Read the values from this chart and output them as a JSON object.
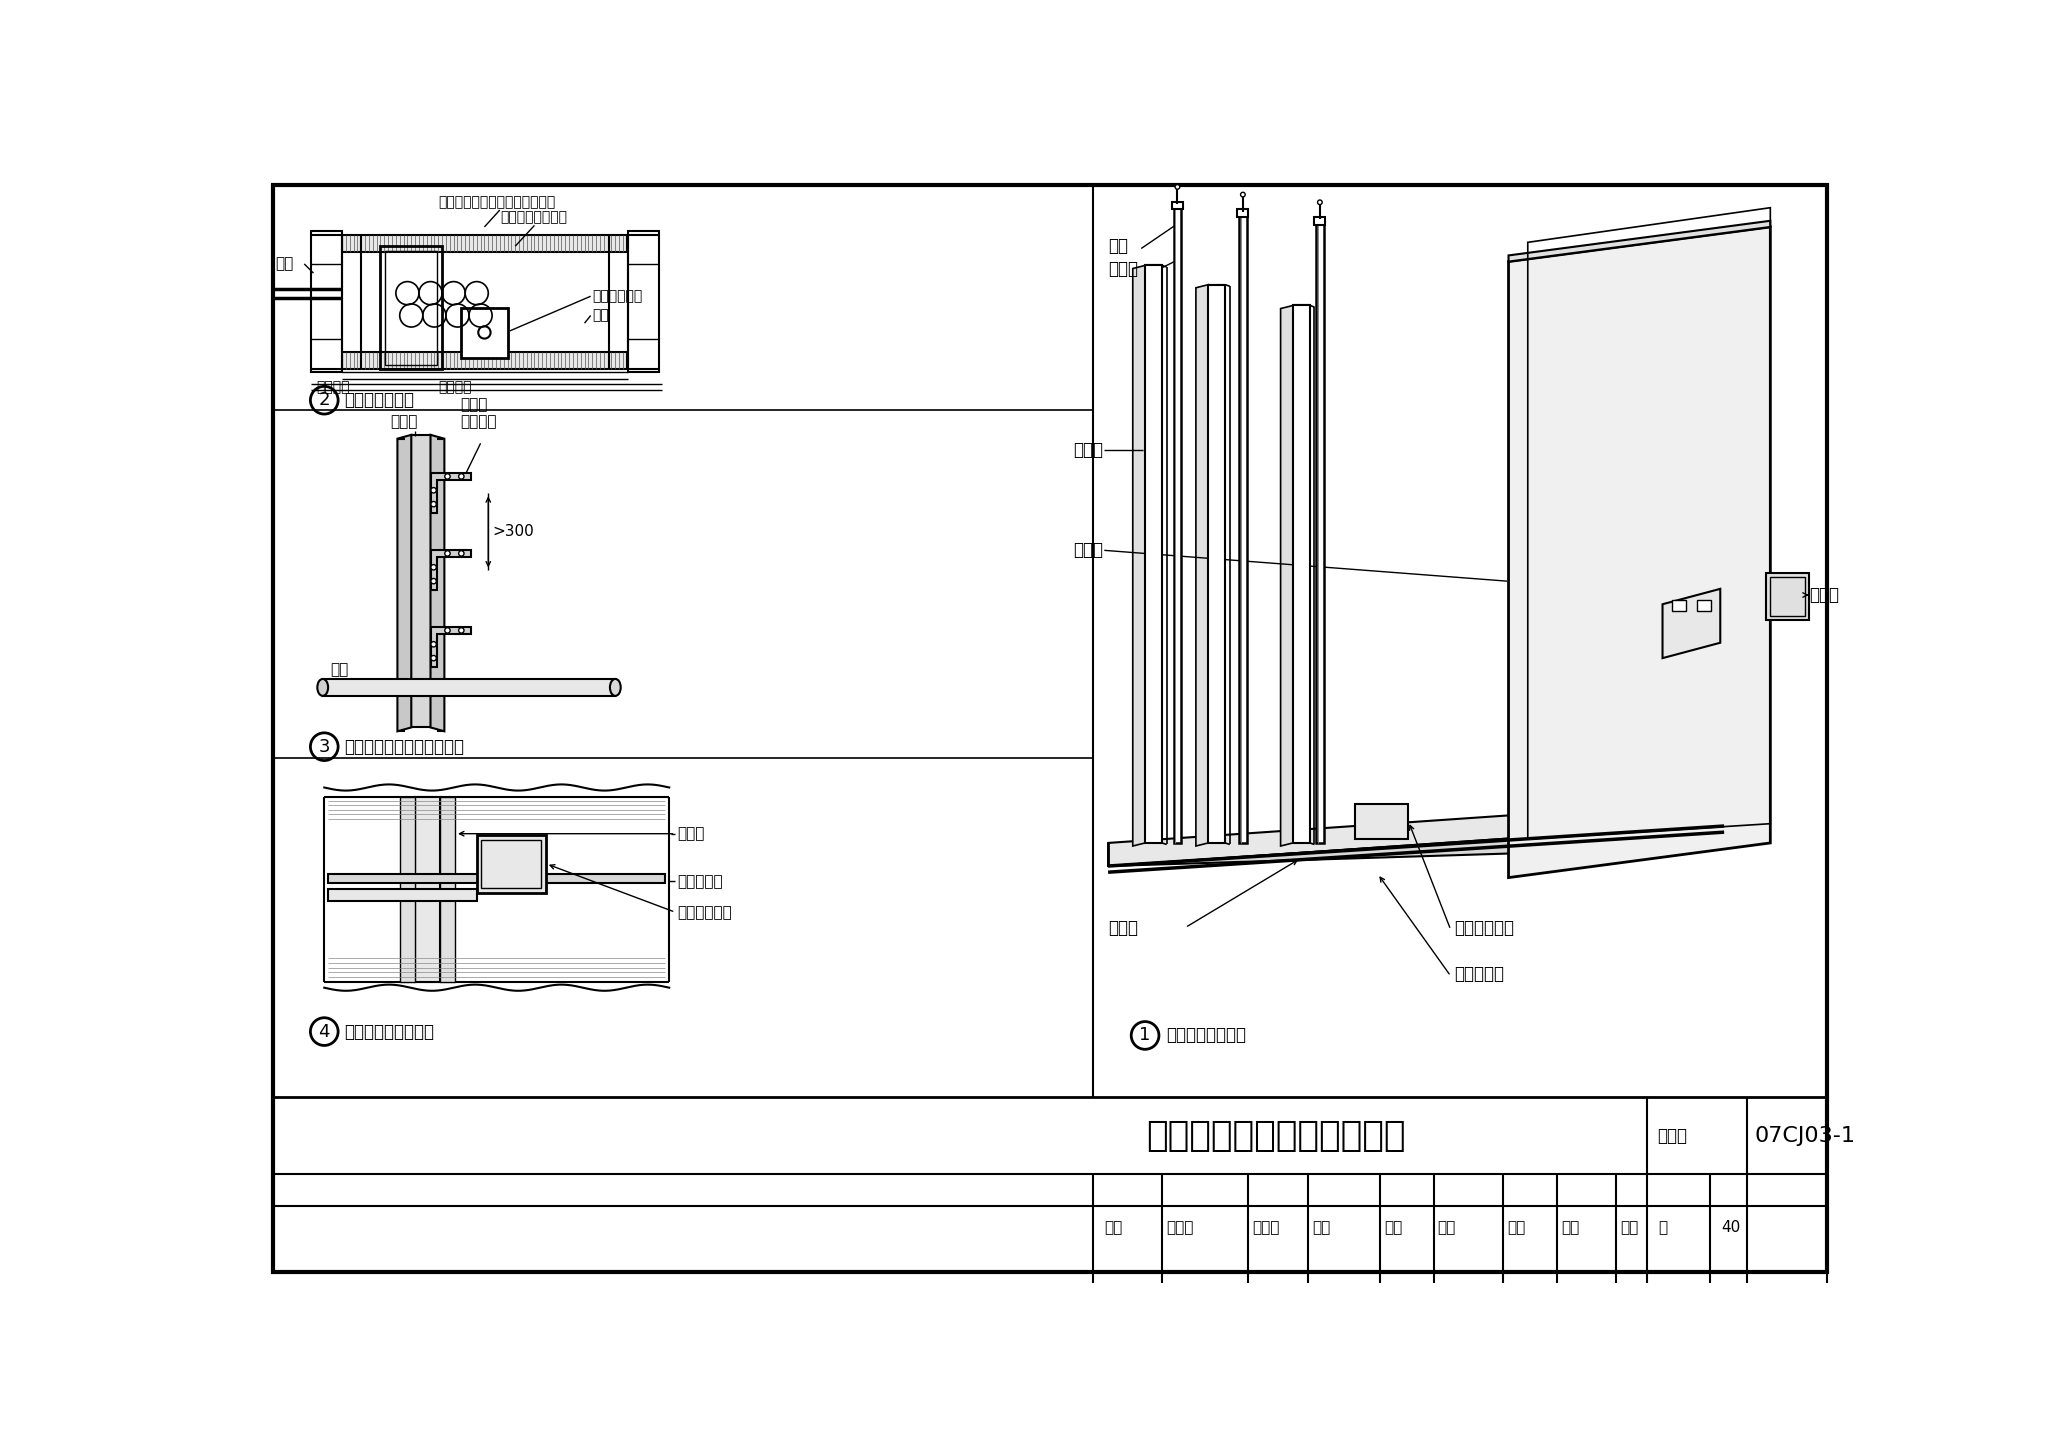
{
  "title": "暗装管线、风口、插座做法",
  "atlas_label": "图集号",
  "atlas_no": "07CJ03-1",
  "page_label": "页",
  "page_no": "40",
  "fig1_caption": "电线管暗装示意图",
  "fig2_caption": "普通隔墙接线盒",
  "fig3_caption": "竖龙骨横向穿管处加强做法",
  "fig4_caption": "接线盒安装横向穿管",
  "lbl_xian": "电线",
  "lbl_xianguan": "电线管",
  "lbl_shu": "竖龙骨",
  "lbl_shi": "石膏板",
  "lbl_heng": "横龙骨",
  "lbl_gang": "固定用钐条",
  "lbl_dianyuan": "电源插孔线盒",
  "lbl_jiexian": "接线盒",
  "lbl_xieguan": "线管",
  "lbl_gelikuang": "隔离框周围用粘接剂与板面粘买",
  "lbl_naihuo": "耔火石膏板隔离框",
  "lbl_zhuran": "阻燃型接线盒",
  "lbl_yan": "岩棉",
  "lbl_ansj1": "按设计定",
  "lbl_ansj2": "按设计定",
  "lbl_angguan": "暗管",
  "lbl_henglong": "横龙骨\n加工而成",
  "lbl_shulong2": "竖龙骨",
  "lbl_gangstrip2": "固定用钐条",
  "lbl_dianyuan2": "电源插孔线盒",
  "lbl_shulong3": "竖龙骨",
  "lbl_300": ">300",
  "table_shenhe": "审核",
  "table_zhao": "赵庆辉",
  "table_ti": "题庆辉",
  "table_jiaodui": "校对",
  "table_li": "李菲",
  "table_libin": "李彬",
  "table_sheji": "设计",
  "table_xuejin": "薛金",
  "table_rongjin": "容金",
  "table_ye": "页",
  "table_40": "40"
}
